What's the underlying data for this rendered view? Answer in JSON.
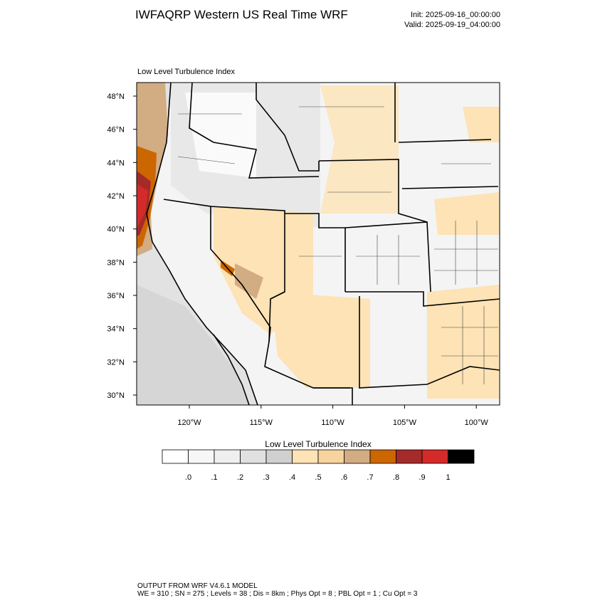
{
  "header": {
    "title": "IWFAQRP Western US Real Time WRF",
    "init": "Init: 2025-09-16_00:00:00",
    "valid": "Valid: 2025-09-19_04:00:00"
  },
  "map": {
    "title": "Low Level Turbulence Index",
    "lat_labels": [
      "48°N",
      "46°N",
      "44°N",
      "42°N",
      "40°N",
      "38°N",
      "36°N",
      "34°N",
      "32°N",
      "30°N"
    ],
    "lon_labels": [
      "120°W",
      "115°W",
      "110°W",
      "105°W",
      "100°W"
    ]
  },
  "colorbar": {
    "title": "Low Level Turbulence Index",
    "colors": [
      "#ffffff",
      "#f7f7f7",
      "#efefef",
      "#e0e0e0",
      "#d0d0d0",
      "#fde3b5",
      "#f7d39e",
      "#d2ac82",
      "#cc6600",
      "#a52a2a",
      "#d42a2a",
      "#000000"
    ],
    "labels": [
      ".0",
      ".1",
      ".2",
      ".3",
      ".4",
      ".5",
      ".6",
      ".7",
      ".8",
      ".9",
      "1"
    ]
  },
  "footer": {
    "line1": "OUTPUT FROM WRF V4.6.1 MODEL",
    "line2": "WE = 310 ; SN = 275 ; Levels = 38 ; Dis = 8km ; Phys Opt = 8 ; PBL Opt = 1 ; Cu Opt = 3"
  }
}
